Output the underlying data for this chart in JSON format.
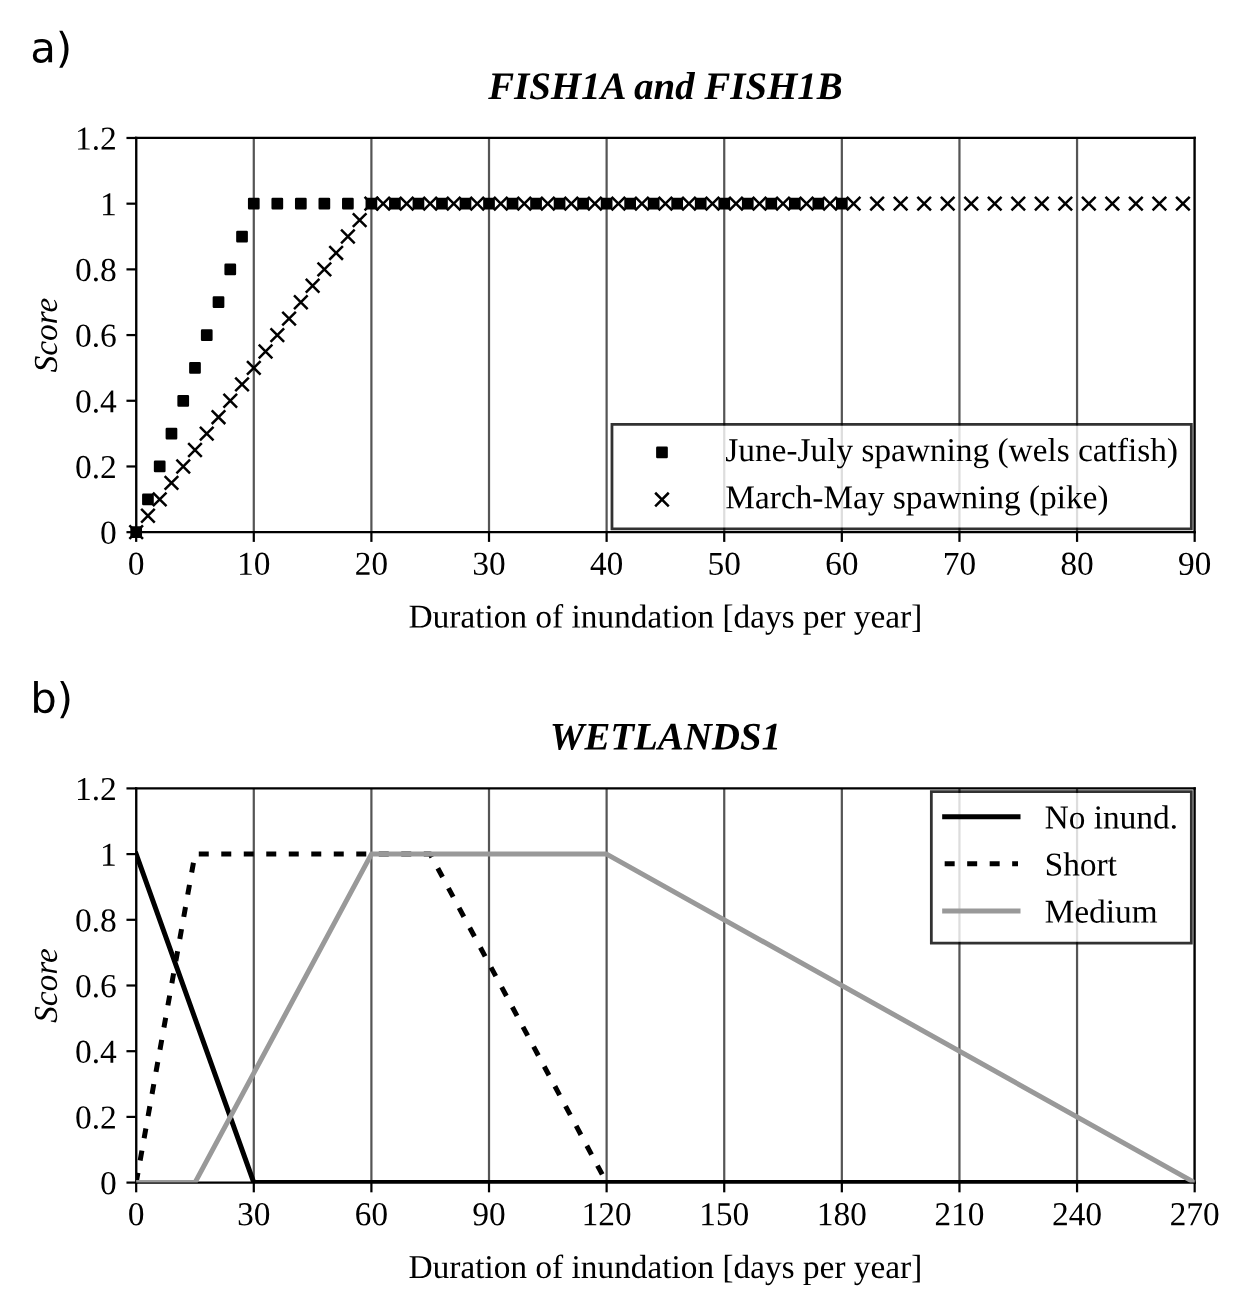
{
  "chart_data": [
    {
      "type": "scatter",
      "title": "FISH1A and FISH1B",
      "xlabel": "Duration of inundation [days per year]",
      "ylabel": "Score",
      "annotations": [
        "a)"
      ],
      "series": [
        {
          "name": "June-July spawning (wels catfish)",
          "color": "#000000",
          "marker": "square",
          "x": [
            0,
            1,
            2,
            3,
            4,
            5,
            6,
            7,
            8,
            9,
            10,
            12,
            14,
            16,
            18,
            20,
            22,
            24,
            26,
            28,
            30,
            32,
            34,
            36,
            38,
            40,
            42,
            44,
            46,
            48,
            50,
            52,
            54,
            56,
            58,
            60
          ],
          "values": [
            0,
            0.1,
            0.2,
            0.3,
            0.4,
            0.5,
            0.6,
            0.7,
            0.8,
            0.9,
            1,
            1,
            1,
            1,
            1,
            1,
            1,
            1,
            1,
            1,
            1,
            1,
            1,
            1,
            1,
            1,
            1,
            1,
            1,
            1,
            1,
            1,
            1,
            1,
            1,
            1
          ]
        },
        {
          "name": "March-May spawning (pike)",
          "color": "#000000",
          "marker": "cross",
          "x": [
            0,
            1,
            2,
            3,
            4,
            5,
            6,
            7,
            8,
            9,
            10,
            11,
            12,
            13,
            14,
            15,
            16,
            17,
            18,
            19,
            20,
            21,
            23,
            25,
            27,
            29,
            31,
            33,
            35,
            37,
            39,
            41,
            43,
            45,
            47,
            49,
            51,
            53,
            55,
            57,
            59,
            61,
            63,
            65,
            67,
            69,
            71,
            73,
            75,
            77,
            79,
            81,
            83,
            85,
            87,
            89
          ],
          "values": [
            0,
            0.05,
            0.1,
            0.15,
            0.2,
            0.25,
            0.3,
            0.35,
            0.4,
            0.45,
            0.5,
            0.55,
            0.6,
            0.65,
            0.7,
            0.75,
            0.8,
            0.85,
            0.9,
            0.95,
            1,
            1,
            1,
            1,
            1,
            1,
            1,
            1,
            1,
            1,
            1,
            1,
            1,
            1,
            1,
            1,
            1,
            1,
            1,
            1,
            1,
            1,
            1,
            1,
            1,
            1,
            1,
            1,
            1,
            1,
            1,
            1,
            1,
            1,
            1,
            1
          ]
        }
      ],
      "xlim": [
        0,
        90
      ],
      "xticks": [
        0,
        10,
        20,
        30,
        40,
        50,
        60,
        70,
        80,
        90
      ],
      "ylim": [
        0,
        1.2
      ],
      "yticks": [
        0,
        0.2,
        0.4,
        0.6,
        0.8,
        1,
        1.2
      ],
      "grid": "x",
      "legend": "bottom right"
    },
    {
      "type": "line",
      "title": "WETLANDS1",
      "xlabel": "Duration of inundation [days per year]",
      "ylabel": "Score",
      "annotations": [
        "b)"
      ],
      "series": [
        {
          "name": "No inund.",
          "color": "#000000",
          "line_style": "solid",
          "x": [
            0,
            30,
            270
          ],
          "values": [
            1,
            0,
            0
          ]
        },
        {
          "name": "Short",
          "color": "#000000",
          "line_style": "dotted",
          "x": [
            0,
            15,
            75,
            120,
            270
          ],
          "values": [
            0,
            1,
            1,
            0,
            0
          ]
        },
        {
          "name": "Medium",
          "color": "#999999",
          "line_style": "solid",
          "x": [
            0,
            15,
            60,
            120,
            270
          ],
          "values": [
            0,
            0,
            1,
            1,
            0
          ]
        }
      ],
      "xlim": [
        0,
        270
      ],
      "xticks": [
        0,
        30,
        60,
        90,
        120,
        150,
        180,
        210,
        240,
        270
      ],
      "ylim": [
        0,
        1.2
      ],
      "yticks": [
        0,
        0.2,
        0.4,
        0.6,
        0.8,
        1,
        1.2
      ],
      "grid": "x",
      "legend": "top right"
    }
  ]
}
